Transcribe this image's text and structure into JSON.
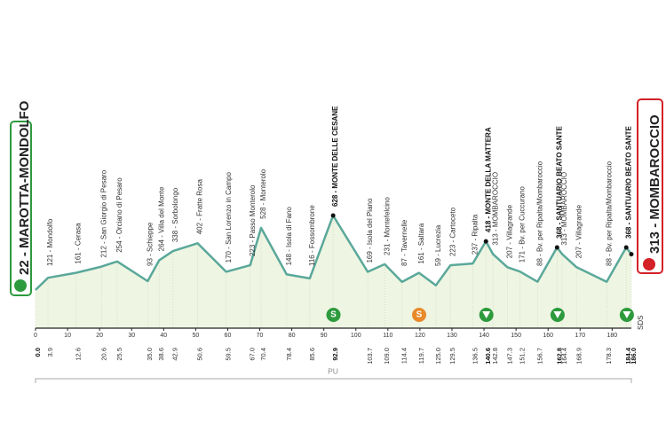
{
  "chart_data": {
    "type": "area",
    "x": [
      0,
      3.9,
      12.6,
      20.6,
      25.5,
      35.0,
      38.6,
      42.9,
      50.6,
      59.5,
      67.0,
      70.4,
      78.4,
      85.6,
      92.9,
      103.7,
      109.0,
      114.4,
      119.7,
      125.0,
      129.5,
      136.5,
      140.6,
      142.8,
      147.3,
      151.2,
      156.7,
      162.8,
      164.4,
      168.9,
      178.3,
      184.4,
      186.0
    ],
    "x_labels": [
      "0.0",
      "3.9",
      "12.6",
      "20.6",
      "25.5",
      "35.0",
      "38.6",
      "42.9",
      "50.6",
      "59.5",
      "67.0",
      "70.4",
      "78.4",
      "85.6",
      "92.9",
      "103.7",
      "109.0",
      "114.4",
      "119.7",
      "125.0",
      "129.5",
      "136.5",
      "140.6",
      "142.8",
      "147.3",
      "151.2",
      "156.7",
      "162.8",
      "164.4",
      "168.9",
      "178.3",
      "184.4",
      "186.0"
    ],
    "values": [
      22,
      121,
      161,
      212,
      254,
      93,
      264,
      338,
      402,
      170,
      223,
      528,
      148,
      116,
      628,
      169,
      231,
      87,
      161,
      59,
      223,
      237,
      418,
      313,
      207,
      171,
      88,
      368,
      313,
      207,
      88,
      368,
      313
    ],
    "value_labels": [
      "22 - MAROTTA-MONDOLFO",
      "121 - Mondolfo",
      "161 - Cerasa",
      "212 - San Giorgio di Pesaro",
      "254 - Orciano di Pesaro",
      "93 - Schieppe",
      "264 - Villa del Monte",
      "338 - Sorbolongo",
      "402 - Fratte Rosa",
      "170 - San Lorenzo in Campo",
      "223 - Passo Monterolo",
      "528 - Monterolo",
      "148 - Isola di Fano",
      "116 - Fossombrone",
      "628 - MONTE DELLE CESANE",
      "169 - Isola del Piano",
      "231 - Montefelcino",
      "87 - Tavernelle",
      "161 - Saltara",
      "59 - Lucrezia",
      "223 - Cartoceto",
      "237 - Ripalta",
      "418 - MONTE DELLA MATTERA",
      "313 - MOMBAROCCIO",
      "207 - Villagrande",
      "171 - Bv. per Cuccurano",
      "88 - Bv. per Ripalta/Mombaroccio",
      "368 - SANTUARIO BEATO SANTE",
      "313 - MOMBAROCCIO",
      "207 - Villagrande",
      "88 - Bv. per Ripalta/Mombaroccio",
      "368 - SANTUARIO BEATO SANTE",
      "313 - MOMBAROCCIO"
    ],
    "xlim": [
      0,
      186
    ],
    "xticks": [
      0,
      10,
      20,
      30,
      40,
      50,
      60,
      70,
      80,
      90,
      100,
      110,
      120,
      130,
      140,
      150,
      160,
      170,
      180
    ],
    "ylim": [
      -290,
      650
    ],
    "color": "#5aa89a",
    "fill": "#eef5e2",
    "sprint_symbol": "S",
    "finish_note": "SDS",
    "region": "PU"
  }
}
